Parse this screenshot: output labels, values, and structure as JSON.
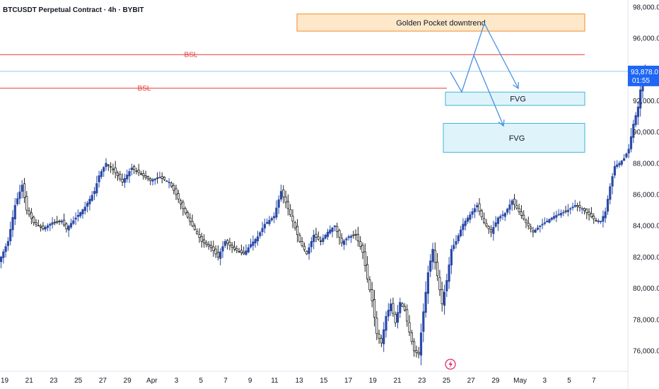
{
  "header": {
    "title": "BTCUSDT Perpetual Contract · 4h · BYBIT"
  },
  "colors": {
    "up": "#2a4aa8",
    "down": "#222222",
    "bsl_line": "#e53935",
    "price_line": "#90caf9",
    "price_tag": "#1e66f5",
    "fvg_fill": "#dff3fb",
    "fvg_border": "#3fb6d4",
    "golden_fill": "#fde8c9",
    "golden_border": "#ef8d2c",
    "projection": "#4a90e2",
    "event_icon": "#e0245e"
  },
  "icons": {
    "event": "lightning-bolt-icon"
  },
  "chart_data": {
    "type": "candlestick",
    "title": "BTCUSDT Perpetual Contract · 4h · BYBIT",
    "xlabel": "",
    "ylabel": "",
    "ylim": [
      74800,
      98200
    ],
    "y_ticks": [
      76000,
      78000,
      80000,
      82000,
      84000,
      86000,
      88000,
      90000,
      92000,
      94000,
      96000,
      98000
    ],
    "y_tick_labels": [
      "76,000.0",
      "78,000.0",
      "80,000.0",
      "82,000.0",
      "84,000.0",
      "86,000.0",
      "88,000.0",
      "90,000.0",
      "92,000.0",
      "94,000.0",
      "96,000.0",
      "98,000.0"
    ],
    "x_ticks": [
      "19",
      "21",
      "23",
      "25",
      "27",
      "29",
      "Apr",
      "3",
      "5",
      "7",
      "9",
      "11",
      "13",
      "15",
      "17",
      "19",
      "21",
      "23",
      "25",
      "27",
      "29",
      "May",
      "3",
      "5",
      "7"
    ],
    "current_price": 93878.0,
    "current_price_label": "93,878.0",
    "countdown": "01:55",
    "anchors": [
      [
        0,
        82000
      ],
      [
        3,
        83000
      ],
      [
        6,
        85300
      ],
      [
        9,
        86600
      ],
      [
        11,
        85000
      ],
      [
        14,
        84200
      ],
      [
        18,
        83800
      ],
      [
        22,
        84200
      ],
      [
        26,
        84300
      ],
      [
        28,
        83800
      ],
      [
        32,
        84500
      ],
      [
        36,
        85200
      ],
      [
        40,
        86200
      ],
      [
        42,
        87200
      ],
      [
        45,
        88000
      ],
      [
        48,
        87600
      ],
      [
        52,
        86800
      ],
      [
        56,
        87700
      ],
      [
        60,
        87300
      ],
      [
        64,
        86900
      ],
      [
        68,
        87100
      ],
      [
        72,
        86800
      ],
      [
        75,
        86000
      ],
      [
        78,
        85100
      ],
      [
        82,
        84000
      ],
      [
        86,
        83000
      ],
      [
        90,
        82600
      ],
      [
        93,
        82000
      ],
      [
        96,
        83000
      ],
      [
        100,
        82500
      ],
      [
        104,
        82200
      ],
      [
        107,
        82800
      ],
      [
        110,
        83300
      ],
      [
        113,
        84100
      ],
      [
        117,
        84600
      ],
      [
        120,
        86200
      ],
      [
        122,
        85500
      ],
      [
        125,
        84300
      ],
      [
        128,
        83000
      ],
      [
        131,
        82200
      ],
      [
        134,
        83400
      ],
      [
        137,
        83000
      ],
      [
        140,
        83600
      ],
      [
        143,
        84000
      ],
      [
        146,
        82900
      ],
      [
        149,
        83300
      ],
      [
        152,
        83400
      ],
      [
        155,
        82300
      ],
      [
        157,
        80600
      ],
      [
        159,
        79200
      ],
      [
        161,
        77100
      ],
      [
        163,
        76500
      ],
      [
        165,
        78200
      ],
      [
        167,
        79000
      ],
      [
        169,
        77800
      ],
      [
        171,
        79100
      ],
      [
        173,
        78600
      ],
      [
        175,
        77200
      ],
      [
        177,
        76000
      ],
      [
        179,
        75800
      ],
      [
        181,
        78500
      ],
      [
        183,
        81000
      ],
      [
        185,
        82500
      ],
      [
        187,
        80800
      ],
      [
        189,
        79000
      ],
      [
        191,
        80500
      ],
      [
        193,
        82500
      ],
      [
        195,
        83000
      ],
      [
        198,
        84100
      ],
      [
        201,
        84700
      ],
      [
        204,
        85300
      ],
      [
        207,
        84200
      ],
      [
        210,
        83600
      ],
      [
        213,
        84500
      ],
      [
        216,
        84800
      ],
      [
        219,
        85600
      ],
      [
        222,
        84900
      ],
      [
        225,
        84200
      ],
      [
        228,
        83600
      ],
      [
        231,
        84000
      ],
      [
        234,
        84300
      ],
      [
        237,
        84600
      ],
      [
        240,
        84800
      ],
      [
        243,
        85000
      ],
      [
        246,
        85300
      ],
      [
        249,
        85100
      ],
      [
        252,
        84700
      ],
      [
        255,
        84300
      ],
      [
        257,
        84300
      ],
      [
        259,
        84900
      ],
      [
        261,
        86500
      ],
      [
        263,
        87800
      ],
      [
        265,
        88000
      ],
      [
        267,
        88300
      ],
      [
        269,
        88900
      ],
      [
        271,
        90500
      ],
      [
        273,
        91600
      ],
      [
        274,
        92700
      ],
      [
        275,
        93500
      ],
      [
        276,
        93878
      ]
    ]
  },
  "annotations": {
    "golden_pocket": {
      "label": "Golden Pocket downtrend",
      "price_low": 96450,
      "price_high": 97550
    },
    "fvg_upper": {
      "label": "FVG",
      "price_low": 91700,
      "price_high": 92550
    },
    "fvg_lower": {
      "label": "FVG",
      "price_low": 88700,
      "price_high": 90550
    },
    "bsl_upper": {
      "label": "BSL",
      "price": 94950
    },
    "bsl_lower": {
      "label": "BSL",
      "price": 92800
    }
  }
}
